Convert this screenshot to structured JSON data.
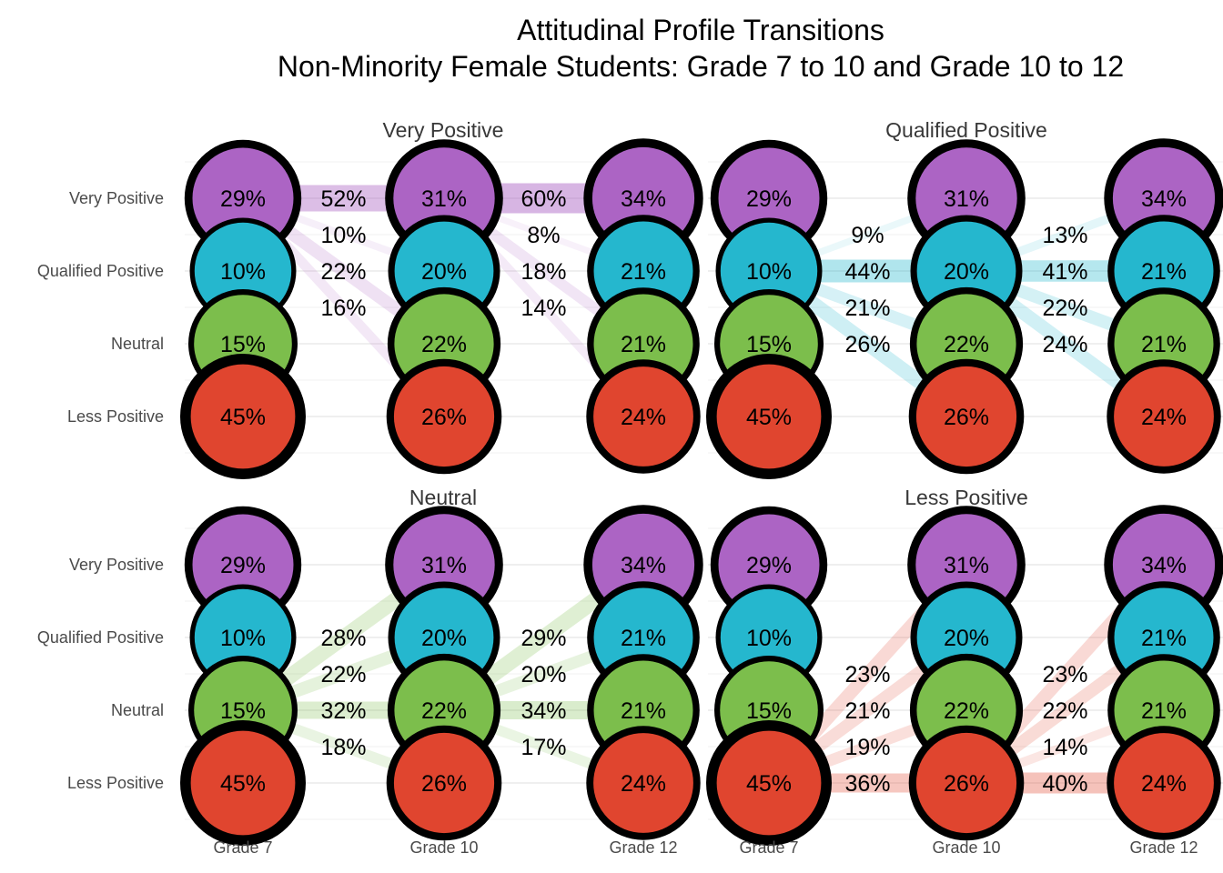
{
  "title": "Attitudinal Profile Transitions",
  "subtitle": "Non-Minority Female Students: Grade 7 to 10 and Grade 10 to 12",
  "chart_data": {
    "type": "transition-diagram",
    "title": "Attitudinal Profile Transitions",
    "subtitle": "Non-Minority Female Students: Grade 7 to 10 and Grade 10 to 12",
    "y_categories": [
      "Very Positive",
      "Qualified Positive",
      "Neutral",
      "Less Positive"
    ],
    "state_colors": [
      "#AC64C4",
      "#25B7CE",
      "#7CBE4C",
      "#E0452F"
    ],
    "outline_color": "#000000",
    "value_unit": "%",
    "grid": true,
    "legend": "none",
    "grade_profiles": [
      {
        "label": "Grade 7",
        "values": [
          29,
          10,
          15,
          45
        ]
      },
      {
        "label": "Grade 10",
        "values": [
          31,
          20,
          22,
          26
        ]
      },
      {
        "label": "Grade 12",
        "values": [
          34,
          21,
          21,
          24
        ]
      }
    ],
    "panels": [
      {
        "title": "Very Positive",
        "source_state": "Very Positive",
        "transitions": [
          {
            "from": "Grade 7",
            "to": "Grade 10",
            "values": [
              52,
              10,
              22,
              16
            ]
          },
          {
            "from": "Grade 10",
            "to": "Grade 12",
            "values": [
              60,
              8,
              18,
              14
            ]
          }
        ]
      },
      {
        "title": "Qualified Positive",
        "source_state": "Qualified Positive",
        "transitions": [
          {
            "from": "Grade 7",
            "to": "Grade 10",
            "values": [
              9,
              44,
              21,
              26
            ]
          },
          {
            "from": "Grade 10",
            "to": "Grade 12",
            "values": [
              13,
              41,
              22,
              24
            ]
          }
        ]
      },
      {
        "title": "Neutral",
        "source_state": "Neutral",
        "transitions": [
          {
            "from": "Grade 7",
            "to": "Grade 10",
            "values": [
              28,
              22,
              32,
              18
            ]
          },
          {
            "from": "Grade 10",
            "to": "Grade 12",
            "values": [
              29,
              20,
              34,
              17
            ]
          }
        ]
      },
      {
        "title": "Less Positive",
        "source_state": "Less Positive",
        "transitions": [
          {
            "from": "Grade 7",
            "to": "Grade 10",
            "values": [
              23,
              21,
              19,
              36
            ]
          },
          {
            "from": "Grade 10",
            "to": "Grade 12",
            "values": [
              23,
              22,
              14,
              40
            ]
          }
        ]
      }
    ]
  }
}
